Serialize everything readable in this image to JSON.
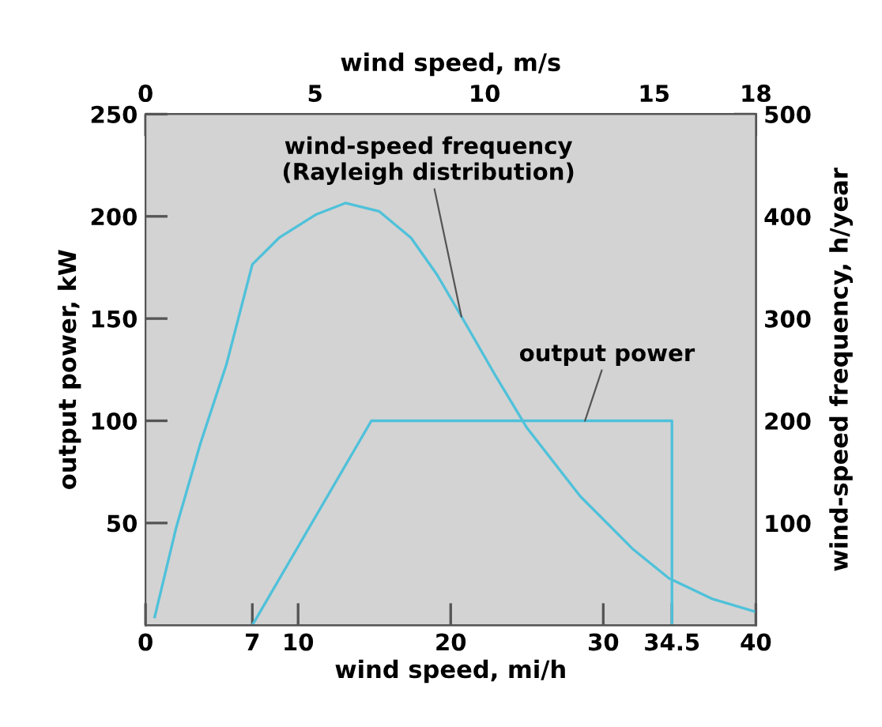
{
  "chart_data": {
    "type": "line",
    "xlabel": "wind speed, mi/h",
    "x2label": "wind speed, m/s",
    "ylabel": "output power, kW",
    "y2label": "wind-speed frequency, h/year",
    "xlim": [
      0,
      40
    ],
    "xticks": [
      0,
      7,
      10,
      20,
      30,
      34.5,
      40
    ],
    "x2lim": [
      0,
      18
    ],
    "x2ticks": [
      0,
      5,
      10,
      15,
      18
    ],
    "ylim": [
      0,
      250
    ],
    "yticks": [
      50,
      100,
      150,
      200,
      250
    ],
    "y2lim": [
      0,
      500
    ],
    "y2ticks": [
      100,
      200,
      300,
      400,
      500
    ],
    "grid": false,
    "legend": false,
    "marker": "none",
    "line_style": "solid",
    "series": [
      {
        "color": "#4fc1da",
        "axis": "y2",
        "x": [
          0.6,
          2.0,
          3.6,
          5.3,
          7.0,
          8.75,
          11.2,
          13.1,
          15.3,
          17.4,
          19.1,
          20.9,
          22.9,
          25.0,
          28.5,
          31.9,
          34.3,
          37.1,
          40.0
        ],
        "values": [
          8,
          95,
          178,
          255,
          353,
          379,
          402,
          413,
          405,
          379,
          343,
          297,
          245,
          193,
          126,
          75,
          46,
          26,
          13
        ]
      },
      {
        "color": "#4fc1da",
        "x": [
          7,
          14.8,
          34.5,
          34.5
        ],
        "values": [
          0,
          100,
          100,
          0
        ]
      }
    ],
    "annotations": [
      {
        "text": "wind-speed frequency\n(Rayleigh distribution)",
        "x": 20.7,
        "y": 151
      },
      {
        "text": "output power",
        "x": 28.8,
        "y": 100
      }
    ]
  }
}
